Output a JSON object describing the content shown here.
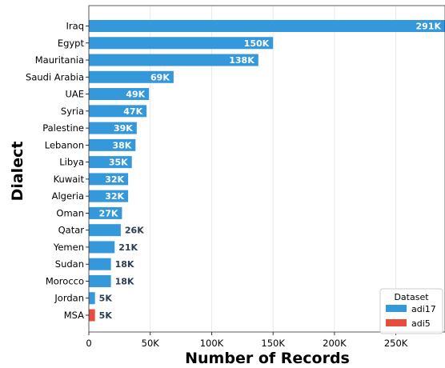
{
  "chart_data": {
    "type": "bar",
    "orientation": "horizontal",
    "xlabel": "Number of Records",
    "ylabel": "Dialect",
    "xlim": [
      0,
      290000
    ],
    "xticks": [
      0,
      50000,
      100000,
      150000,
      200000,
      250000
    ],
    "xtick_labels": [
      "0",
      "50K",
      "100K",
      "150K",
      "200K",
      "250K"
    ],
    "grid": "vertical",
    "legend": {
      "title": "Dataset",
      "placement": "bottom-right",
      "entries": [
        {
          "name": "adi17",
          "color": "#3498db"
        },
        {
          "name": "adi5",
          "color": "#e74c3c"
        }
      ]
    },
    "bars": [
      {
        "category": "Iraq",
        "value": 291000,
        "label": "291K",
        "series": "adi17"
      },
      {
        "category": "Egypt",
        "value": 150000,
        "label": "150K",
        "series": "adi17"
      },
      {
        "category": "Mauritania",
        "value": 138000,
        "label": "138K",
        "series": "adi17"
      },
      {
        "category": "Saudi Arabia",
        "value": 69000,
        "label": "69K",
        "series": "adi17"
      },
      {
        "category": "UAE",
        "value": 49000,
        "label": "49K",
        "series": "adi17"
      },
      {
        "category": "Syria",
        "value": 47000,
        "label": "47K",
        "series": "adi17"
      },
      {
        "category": "Palestine",
        "value": 39000,
        "label": "39K",
        "series": "adi17"
      },
      {
        "category": "Lebanon",
        "value": 38000,
        "label": "38K",
        "series": "adi17"
      },
      {
        "category": "Libya",
        "value": 35000,
        "label": "35K",
        "series": "adi17"
      },
      {
        "category": "Kuwait",
        "value": 32000,
        "label": "32K",
        "series": "adi17"
      },
      {
        "category": "Algeria",
        "value": 32000,
        "label": "32K",
        "series": "adi17"
      },
      {
        "category": "Oman",
        "value": 27000,
        "label": "27K",
        "series": "adi17"
      },
      {
        "category": "Qatar",
        "value": 26000,
        "label": "26K",
        "series": "adi17"
      },
      {
        "category": "Yemen",
        "value": 21000,
        "label": "21K",
        "series": "adi17"
      },
      {
        "category": "Sudan",
        "value": 18000,
        "label": "18K",
        "series": "adi17"
      },
      {
        "category": "Morocco",
        "value": 18000,
        "label": "18K",
        "series": "adi17"
      },
      {
        "category": "Jordan",
        "value": 5000,
        "label": "5K",
        "series": "adi17"
      },
      {
        "category": "MSA",
        "value": 5000,
        "label": "5K",
        "series": "adi5"
      }
    ]
  }
}
